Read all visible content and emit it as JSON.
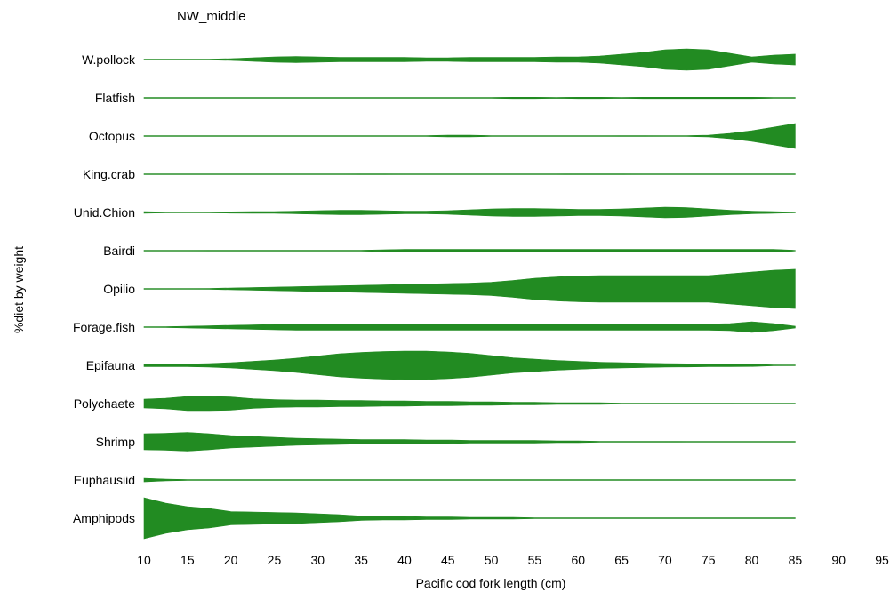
{
  "chart_data": {
    "type": "area",
    "title": "NW_middle",
    "xlabel": "Pacific cod fork length (cm)",
    "ylabel": "%diet by weight",
    "xlim": [
      10,
      95
    ],
    "x_ticks": [
      10,
      15,
      20,
      25,
      30,
      35,
      40,
      45,
      50,
      55,
      60,
      65,
      70,
      75,
      80,
      85,
      90,
      95
    ],
    "y_categories": [
      "W.pollock",
      "Flatfish",
      "Octopus",
      "King.crab",
      "Unid.Chion",
      "Bairdi",
      "Opilio",
      "Forage.fish",
      "Epifauna",
      "Polychaete",
      "Shrimp",
      "Euphausiid",
      "Amphipods"
    ],
    "color": "#228B22",
    "x": [
      10,
      12.5,
      15,
      17.5,
      20,
      22.5,
      25,
      27.5,
      30,
      32.5,
      35,
      37.5,
      40,
      42.5,
      45,
      47.5,
      50,
      52.5,
      55,
      57.5,
      60,
      62.5,
      65,
      67.5,
      70,
      72.5,
      75,
      77.5,
      80,
      82.5,
      85
    ],
    "series": [
      {
        "name": "W.pollock",
        "values": [
          0,
          0,
          0,
          1,
          2,
          4,
          6,
          7,
          6,
          5,
          5,
          5,
          5,
          4,
          4,
          5,
          5,
          5,
          5,
          6,
          6,
          8,
          12,
          16,
          22,
          24,
          22,
          14,
          6,
          10,
          12
        ]
      },
      {
        "name": "Flatfish",
        "values": [
          0,
          0,
          0,
          0,
          0,
          0,
          0,
          0,
          0,
          0,
          0,
          0,
          0,
          0,
          0,
          0,
          1,
          1.5,
          1.5,
          0.5,
          1.5,
          1.5,
          0.5,
          1.5,
          1.5,
          1.5,
          1.5,
          1.5,
          1.5,
          0.5,
          0
        ]
      },
      {
        "name": "Octopus",
        "values": [
          0,
          0,
          0,
          0,
          0,
          0,
          0,
          0,
          0,
          0,
          0,
          0,
          0,
          0.5,
          2,
          2,
          0.5,
          0,
          0,
          0,
          0,
          0,
          1,
          1,
          0,
          0.5,
          2,
          6,
          12,
          20,
          28
        ]
      },
      {
        "name": "King.crab",
        "values": [
          0,
          0,
          0,
          0,
          0,
          0,
          0,
          0,
          0,
          0,
          1,
          1,
          0,
          0,
          0,
          0,
          0,
          0,
          0,
          0,
          1,
          1,
          1,
          0,
          0,
          0,
          0,
          0,
          0,
          0,
          0
        ]
      },
      {
        "name": "Unid.Chion",
        "values": [
          2,
          1,
          0.5,
          1,
          1.5,
          2,
          2,
          3,
          4,
          5,
          5,
          4,
          3,
          3,
          4,
          6,
          8,
          9,
          9,
          8,
          7,
          7,
          8,
          10,
          12,
          11,
          8,
          5,
          3,
          2,
          0
        ]
      },
      {
        "name": "Bairdi",
        "values": [
          0,
          0,
          0,
          1,
          1,
          1,
          1,
          1,
          1,
          1,
          1,
          2,
          3,
          3,
          3,
          3,
          3,
          3,
          3,
          3,
          3,
          3,
          3,
          3,
          3,
          3,
          3,
          3,
          3,
          3,
          0
        ]
      },
      {
        "name": "Opilio",
        "values": [
          0,
          0,
          0,
          1,
          2,
          3,
          4,
          5,
          6,
          7,
          8,
          9,
          10,
          11,
          12,
          13,
          15,
          19,
          24,
          27,
          29,
          30,
          30,
          30,
          30,
          30,
          30,
          34,
          38,
          42,
          44
        ]
      },
      {
        "name": "Forage.fish",
        "values": [
          0,
          1,
          2,
          3,
          4,
          5,
          6,
          7,
          7,
          7,
          7,
          7,
          7,
          7,
          7,
          7,
          7,
          7,
          7,
          7,
          7,
          7,
          7,
          7,
          7,
          7,
          7,
          8,
          12,
          8,
          2
        ]
      },
      {
        "name": "Epifauna",
        "values": [
          3,
          3,
          3,
          4,
          6,
          9,
          12,
          16,
          21,
          26,
          29,
          31,
          32,
          32,
          30,
          27,
          22,
          17,
          14,
          11,
          9,
          7,
          6,
          5,
          4,
          3.5,
          3,
          3,
          2.5,
          1,
          0
        ]
      },
      {
        "name": "Polychaete",
        "values": [
          10,
          12,
          16,
          16,
          15,
          11,
          9,
          8,
          8,
          7,
          7,
          6,
          6,
          5,
          5,
          4,
          4,
          3,
          3,
          2,
          2,
          2,
          1,
          1,
          1,
          1,
          1,
          1,
          0,
          0,
          0
        ]
      },
      {
        "name": "Shrimp",
        "values": [
          18,
          19,
          21,
          18,
          14,
          12,
          10,
          8,
          7,
          6,
          5,
          5,
          5,
          4,
          4,
          3,
          3,
          3,
          3,
          2,
          2,
          1,
          1,
          1,
          1,
          0,
          0,
          0,
          0,
          0,
          0
        ]
      },
      {
        "name": "Euphausiid",
        "values": [
          4,
          2,
          1,
          1,
          1,
          1,
          1,
          1,
          1,
          1,
          1,
          1,
          0,
          0,
          0,
          0,
          0,
          0,
          0,
          0,
          0,
          0,
          0,
          0,
          0,
          0,
          0,
          0,
          0,
          0,
          0
        ]
      },
      {
        "name": "Amphipods",
        "values": [
          46,
          34,
          26,
          22,
          15,
          14,
          13,
          12,
          10,
          8,
          5,
          4,
          4,
          3,
          3,
          2,
          2,
          2,
          1,
          1,
          1,
          1,
          0,
          0,
          0,
          0,
          0,
          0,
          0,
          0,
          0
        ]
      }
    ]
  }
}
